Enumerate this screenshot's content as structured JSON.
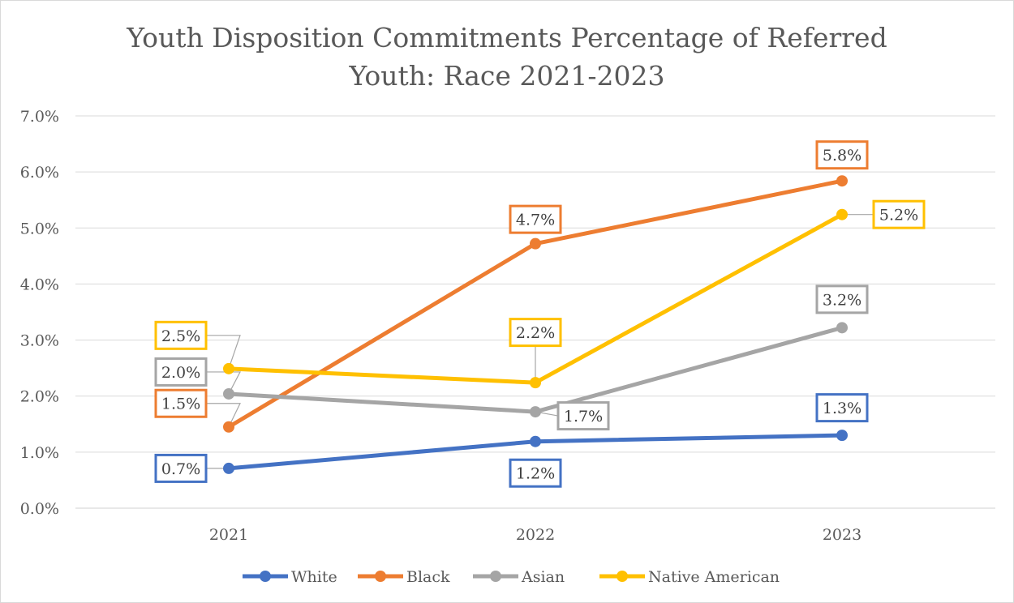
{
  "chart_data": {
    "type": "line",
    "title_lines": [
      "Youth Disposition Commitments Percentage of Referred",
      "Youth: Race 2021-2023"
    ],
    "xlabel": "",
    "ylabel": "",
    "categories": [
      "2021",
      "2022",
      "2023"
    ],
    "y_ticks": [
      "0.0%",
      "1.0%",
      "2.0%",
      "3.0%",
      "4.0%",
      "5.0%",
      "6.0%",
      "7.0%"
    ],
    "ylim": [
      0,
      0.07
    ],
    "grid": true,
    "legend_position": "bottom",
    "series": [
      {
        "name": "White",
        "color": "#4472C4",
        "values": [
          0.0071,
          0.0119,
          0.013
        ],
        "labels": [
          "0.7%",
          "1.2%",
          "1.3%"
        ]
      },
      {
        "name": "Black",
        "color": "#ED7D31",
        "values": [
          0.0145,
          0.0472,
          0.0584
        ],
        "labels": [
          "1.5%",
          "4.7%",
          "5.8%"
        ]
      },
      {
        "name": "Asian",
        "color": "#A5A5A5",
        "values": [
          0.0204,
          0.0172,
          0.0322
        ],
        "labels": [
          "2.0%",
          "1.7%",
          "3.2%"
        ]
      },
      {
        "name": "Native American",
        "color": "#FFC000",
        "values": [
          0.0249,
          0.0224,
          0.0524
        ],
        "labels": [
          "2.5%",
          "2.2%",
          "5.2%"
        ]
      }
    ]
  }
}
